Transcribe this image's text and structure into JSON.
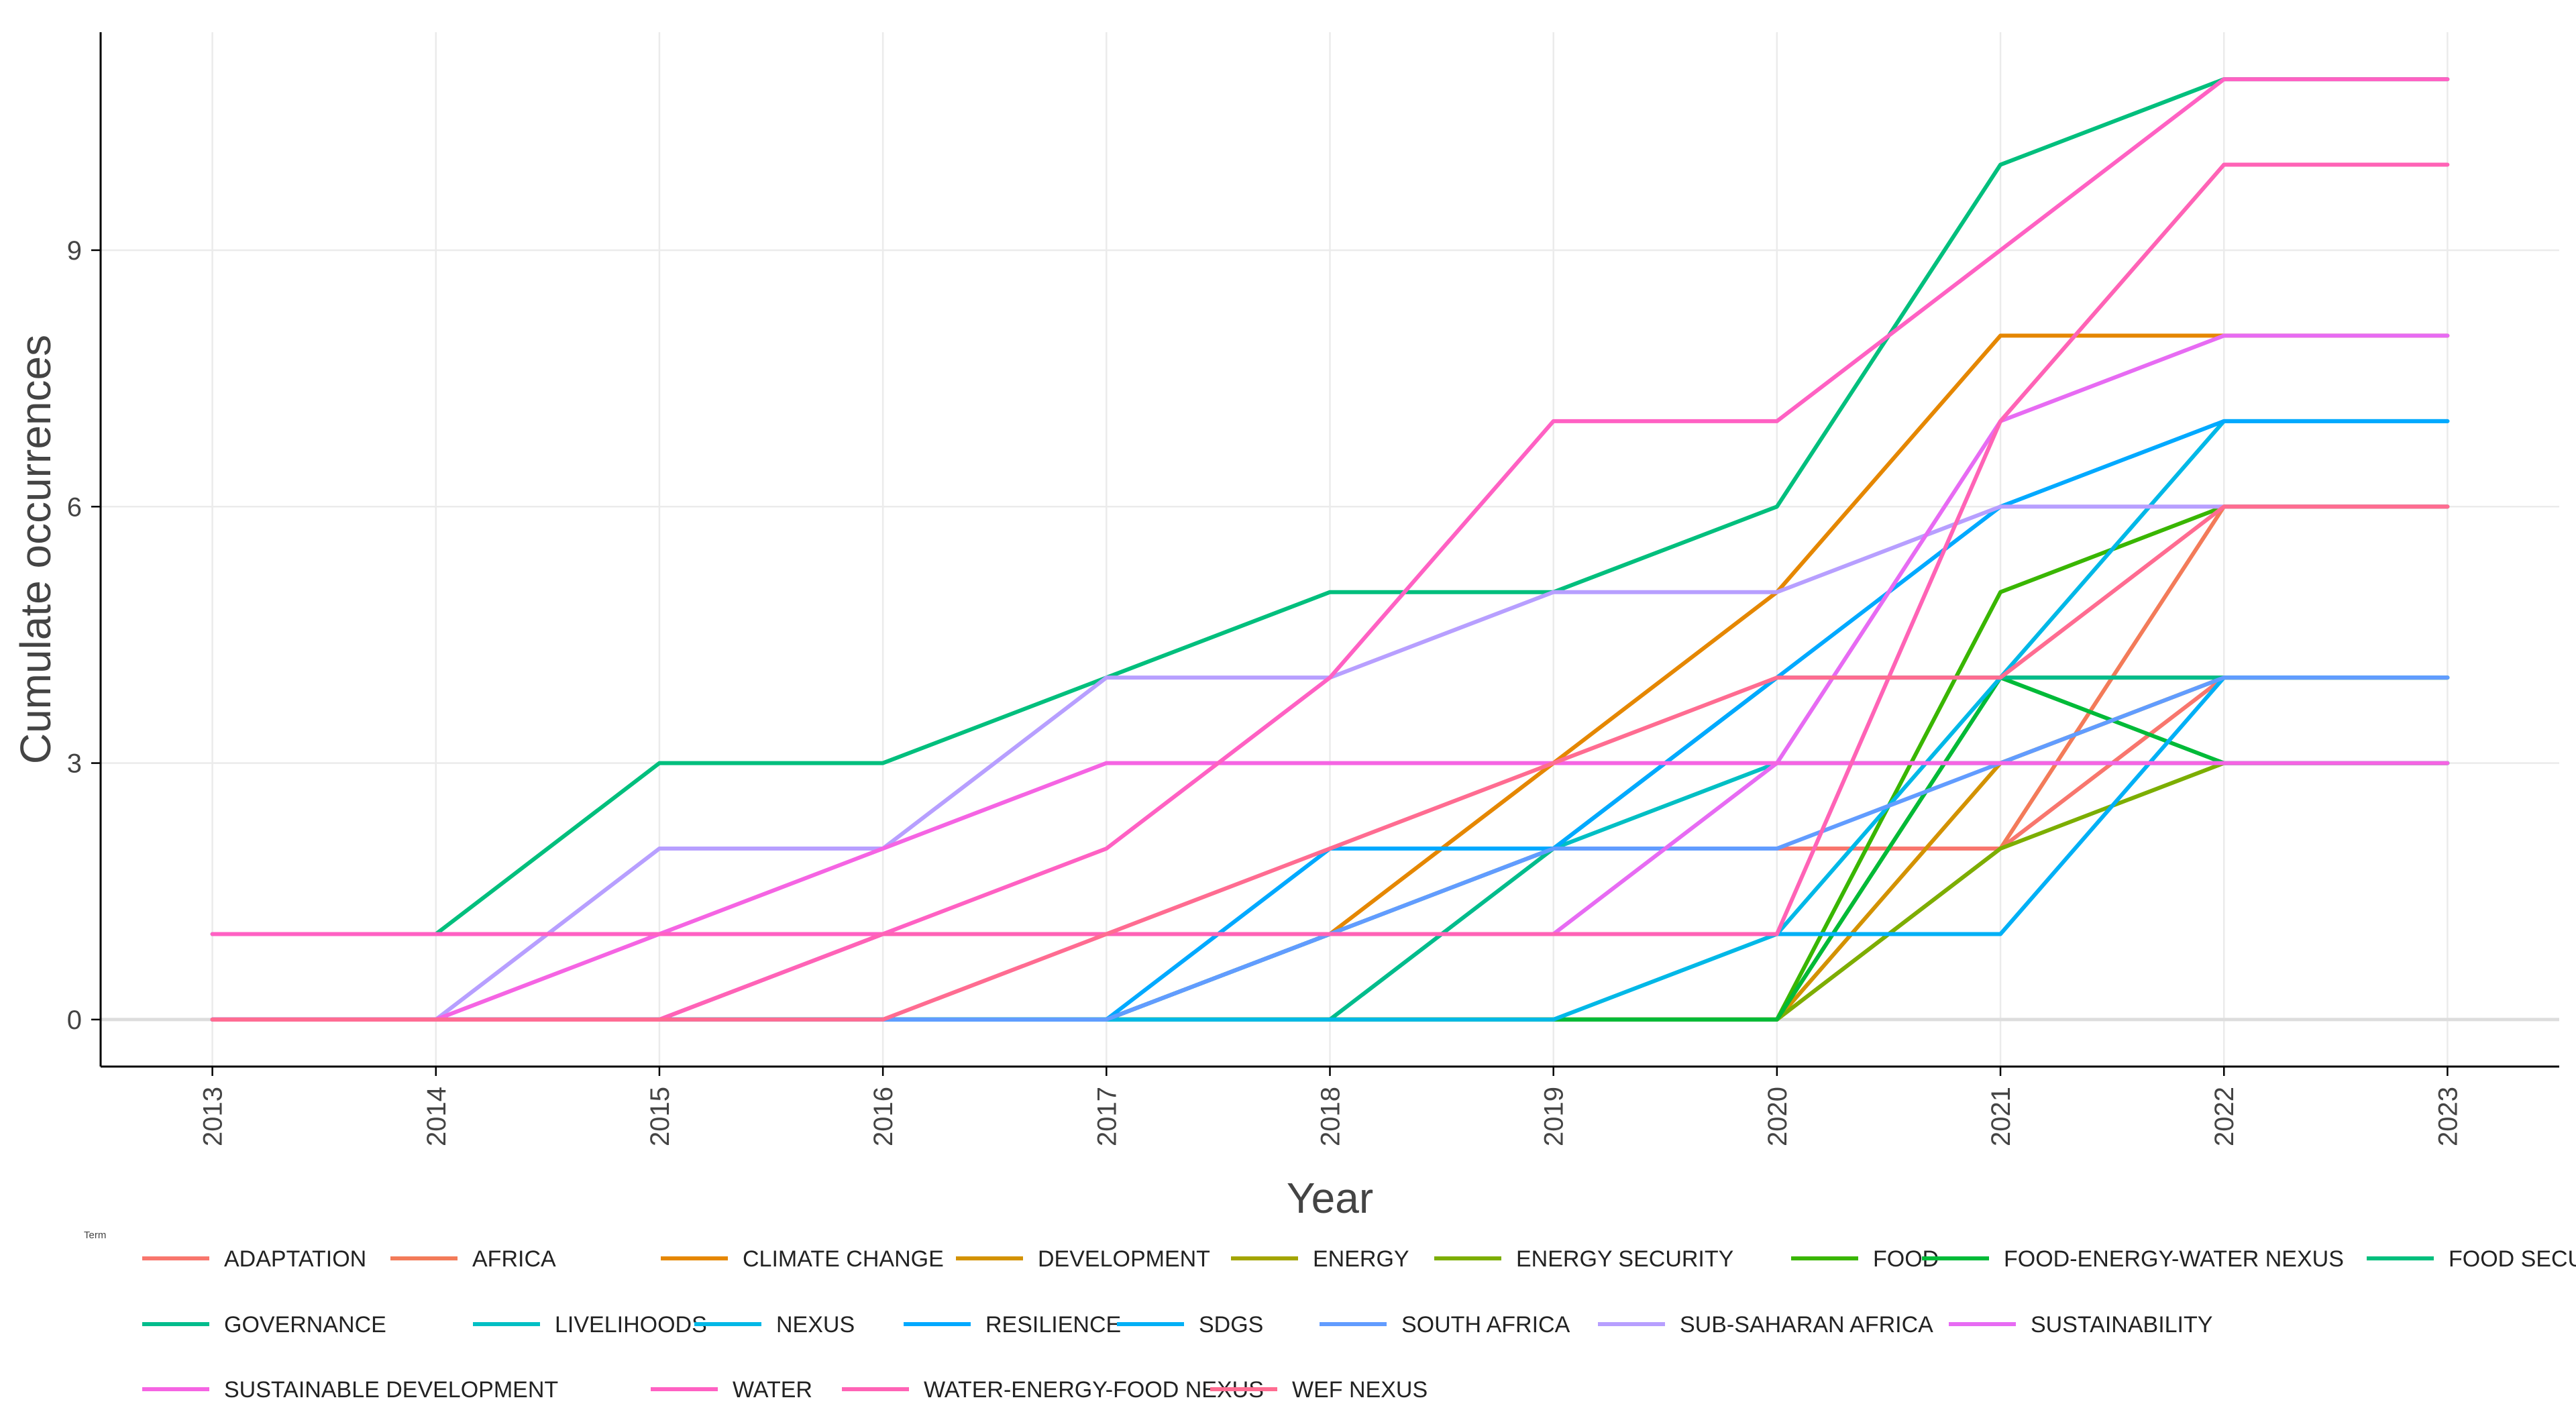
{
  "chart_data": {
    "type": "line",
    "title": "",
    "xlabel": "Year",
    "ylabel": "Cumulate occurrences",
    "legend_title": "Term",
    "legend_position": "bottom",
    "grid": true,
    "x": [
      2013,
      2014,
      2015,
      2016,
      2017,
      2018,
      2019,
      2020,
      2021,
      2022,
      2023
    ],
    "x_tick_labels": [
      "2013",
      "2014",
      "2015",
      "2016",
      "2017",
      "2018",
      "2019",
      "2020",
      "2021",
      "2022",
      "2023"
    ],
    "y_ticks": [
      0,
      3,
      6,
      9
    ],
    "y_tick_labels": [
      "0",
      "3",
      "6",
      "9"
    ],
    "ylim": [
      -0.55,
      11.55
    ],
    "xlim": [
      2012.5,
      2023.5
    ],
    "series": [
      {
        "name": "ADAPTATION",
        "color": "#F8766D",
        "values": [
          0,
          0,
          0,
          0,
          0,
          1,
          2,
          2,
          2,
          4,
          4
        ]
      },
      {
        "name": "AFRICA",
        "color": "#F37B59",
        "values": [
          0,
          0,
          0,
          0,
          0,
          0,
          0,
          0,
          2,
          6,
          6
        ]
      },
      {
        "name": "CLIMATE CHANGE",
        "color": "#E58700",
        "values": [
          0,
          0,
          0,
          0,
          0,
          1,
          3,
          5,
          8,
          8,
          8
        ]
      },
      {
        "name": "DEVELOPMENT",
        "color": "#D39200",
        "values": [
          0,
          0,
          0,
          0,
          0,
          0,
          0,
          0,
          3,
          4,
          4
        ]
      },
      {
        "name": "ENERGY",
        "color": "#A3A500",
        "values": [
          0,
          0,
          0,
          0,
          0,
          0,
          0,
          0,
          4,
          4,
          4
        ]
      },
      {
        "name": "ENERGY SECURITY",
        "color": "#7CAE00",
        "values": [
          0,
          0,
          0,
          0,
          0,
          0,
          0,
          0,
          2,
          3,
          3
        ]
      },
      {
        "name": "FOOD",
        "color": "#39B600",
        "values": [
          0,
          0,
          0,
          0,
          0,
          0,
          0,
          0,
          5,
          6,
          6
        ]
      },
      {
        "name": "FOOD-ENERGY-WATER NEXUS",
        "color": "#00BA38",
        "values": [
          0,
          0,
          0,
          0,
          0,
          0,
          0,
          0,
          4,
          3,
          3
        ]
      },
      {
        "name": "FOOD SECURITY",
        "color": "#00BF7D",
        "values": [
          1,
          1,
          3,
          3,
          4,
          5,
          5,
          6,
          10,
          11,
          11
        ]
      },
      {
        "name": "GOVERNANCE",
        "color": "#00BC8C",
        "values": [
          0,
          0,
          0,
          0,
          0,
          0,
          2,
          4,
          4,
          4,
          4
        ]
      },
      {
        "name": "LIVELIHOODS",
        "color": "#00BFC4",
        "values": [
          0,
          0,
          0,
          0,
          0,
          1,
          2,
          3,
          3,
          3,
          3
        ]
      },
      {
        "name": "NEXUS",
        "color": "#00B8E7",
        "values": [
          0,
          0,
          0,
          0,
          0,
          0,
          0,
          1,
          4,
          7,
          7
        ]
      },
      {
        "name": "RESILIENCE",
        "color": "#00A9FF",
        "values": [
          0,
          0,
          0,
          0,
          0,
          2,
          2,
          4,
          6,
          7,
          7
        ]
      },
      {
        "name": "SDGS",
        "color": "#00B0F6",
        "values": [
          0,
          0,
          0,
          0,
          0,
          1,
          1,
          1,
          1,
          4,
          4
        ]
      },
      {
        "name": "SOUTH AFRICA",
        "color": "#619CFF",
        "values": [
          0,
          0,
          0,
          0,
          0,
          1,
          2,
          2,
          3,
          4,
          4
        ]
      },
      {
        "name": "SUB-SAHARAN AFRICA",
        "color": "#B79FFF",
        "values": [
          0,
          0,
          2,
          2,
          4,
          4,
          5,
          5,
          6,
          6,
          6
        ]
      },
      {
        "name": "SUSTAINABILITY",
        "color": "#E76BF3",
        "values": [
          0,
          0,
          0,
          1,
          1,
          1,
          1,
          3,
          7,
          8,
          8
        ]
      },
      {
        "name": "SUSTAINABLE DEVELOPMENT",
        "color": "#F564E3",
        "values": [
          0,
          0,
          1,
          2,
          3,
          3,
          3,
          3,
          3,
          3,
          3
        ]
      },
      {
        "name": "WATER",
        "color": "#FF61C3",
        "values": [
          1,
          1,
          1,
          1,
          2,
          4,
          7,
          7,
          9,
          11,
          11
        ]
      },
      {
        "name": "WATER-ENERGY-FOOD NEXUS",
        "color": "#FF63B6",
        "values": [
          0,
          0,
          0,
          1,
          1,
          1,
          1,
          1,
          7,
          10,
          10
        ]
      },
      {
        "name": "WEF NEXUS",
        "color": "#FF6C91",
        "values": [
          0,
          0,
          0,
          0,
          1,
          2,
          3,
          4,
          4,
          6,
          6
        ]
      }
    ]
  }
}
